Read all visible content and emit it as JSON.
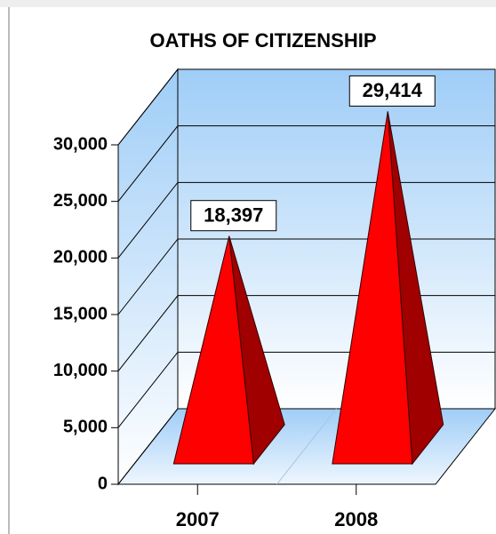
{
  "chart_data": {
    "type": "pyramid3d",
    "title": "OATHS OF CITIZENSHIP",
    "categories": [
      "2007",
      "2008"
    ],
    "values": [
      18397,
      29414
    ],
    "value_labels": [
      "18,397",
      "29,414"
    ],
    "color": "#ff0000",
    "ylim": [
      0,
      30000
    ],
    "yticks": [
      0,
      {
        "value": 5000,
        "label": "5,000"
      },
      {
        "value": 10000,
        "label": "10,000"
      },
      {
        "value": 15000,
        "label": "15,000"
      },
      {
        "value": 20000,
        "label": "20,000"
      },
      {
        "value": 25000,
        "label": "25,000"
      },
      {
        "value": 30000,
        "label": "30,000"
      }
    ],
    "grid": true
  }
}
